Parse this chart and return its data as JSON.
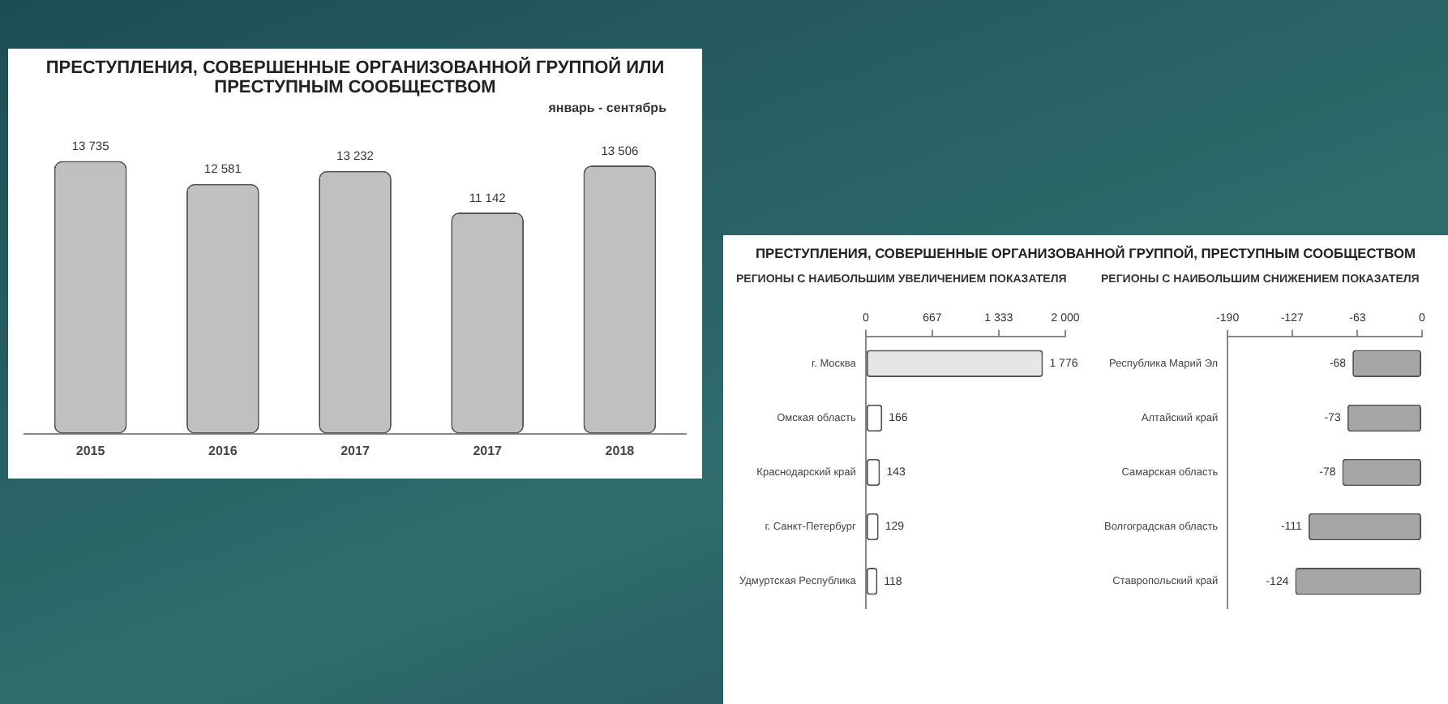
{
  "chart_data": [
    {
      "type": "bar",
      "title": "ПРЕСТУПЛЕНИЯ, СОВЕРШЕННЫЕ ОРГАНИЗОВАННОЙ ГРУППОЙ ИЛИ ПРЕСТУПНЫМ СООБЩЕСТВОМ",
      "annotations": [
        "январь - сентябрь"
      ],
      "categories": [
        "2015",
        "2016",
        "2017",
        "2017",
        "2018"
      ],
      "values": [
        13735,
        12581,
        13232,
        11142,
        13506
      ],
      "value_labels": [
        "13 735",
        "12 581",
        "13 232",
        "11 142",
        "13 506"
      ],
      "color": "#c0c0c0",
      "tick_labels": "x",
      "legend": false,
      "grid": false
    },
    {
      "type": "bar",
      "orientation": "horizontal",
      "title": "ПРЕСТУПЛЕНИЯ, СОВЕРШЕННЫЕ ОРГАНИЗОВАННОЙ ГРУППОЙ, ПРЕСТУПНЫМ СООБЩЕСТВОМ",
      "subtitle": "РЕГИОНЫ С НАИБОЛЬШИМ УВЕЛИЧЕНИЕМ ПОКАЗАТЕЛЯ",
      "categories": [
        "г. Москва",
        "Омская область",
        "Краснодарский край",
        "г. Санкт-Петербург",
        "Удмуртская Республика"
      ],
      "values": [
        1776,
        166,
        143,
        129,
        118
      ],
      "value_labels": [
        "1 776",
        "166",
        "143",
        "129",
        "118"
      ],
      "colors": [
        "#e6e6e6",
        "#ffffff",
        "#ffffff",
        "#ffffff",
        "#ffffff"
      ],
      "xlim": [
        0,
        2000
      ],
      "xticks": [
        0,
        667,
        {
          "value": 1333,
          "label": "1 333"
        },
        {
          "value": 2000,
          "label": "2 000"
        }
      ],
      "legend": false,
      "grid": false
    },
    {
      "type": "bar",
      "orientation": "horizontal",
      "subtitle": "РЕГИОНЫ С НАИБОЛЬШИМ СНИЖЕНИЕМ ПОКАЗАТЕЛЯ",
      "categories": [
        "Республика Марий Эл",
        "Алтайский край",
        "Самарская область",
        "Волгоградская область",
        "Ставропольский край"
      ],
      "values": [
        -68,
        -73,
        -78,
        -111,
        -124
      ],
      "data_labels": true,
      "color": "#a6a6a6",
      "xlim": [
        -190,
        0
      ],
      "xticks": [
        -190,
        -127,
        -63,
        0
      ],
      "legend": false,
      "grid": false
    }
  ]
}
